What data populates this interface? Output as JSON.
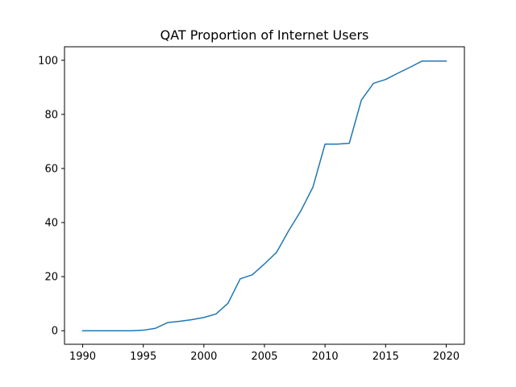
{
  "chart_data": {
    "type": "line",
    "title": "QAT Proportion of Internet Users",
    "xlabel": "",
    "ylabel": "",
    "xlim": [
      1988.5,
      2021.5
    ],
    "ylim": [
      -5,
      105
    ],
    "x_ticks": [
      1990,
      1995,
      2000,
      2005,
      2010,
      2015,
      2020
    ],
    "y_ticks": [
      0,
      20,
      40,
      60,
      80,
      100
    ],
    "grid": false,
    "legend": "none",
    "series": [
      {
        "color": "#1f77b4",
        "x": [
          1990,
          1991,
          1992,
          1993,
          1994,
          1995,
          1996,
          1997,
          1998,
          1999,
          2000,
          2001,
          2002,
          2003,
          2004,
          2005,
          2006,
          2007,
          2008,
          2009,
          2010,
          2011,
          2012,
          2013,
          2014,
          2015,
          2016,
          2017,
          2018,
          2019,
          2020
        ],
        "values": [
          0,
          0,
          0,
          0,
          0,
          0.2,
          0.9,
          3.0,
          3.5,
          4.1,
          4.9,
          6.2,
          10.2,
          19.2,
          20.7,
          24.7,
          29.0,
          37.0,
          44.3,
          53.1,
          69.0,
          69.0,
          69.3,
          85.3,
          91.5,
          92.9,
          95.2,
          97.4,
          99.7,
          99.7,
          99.7
        ]
      }
    ]
  }
}
